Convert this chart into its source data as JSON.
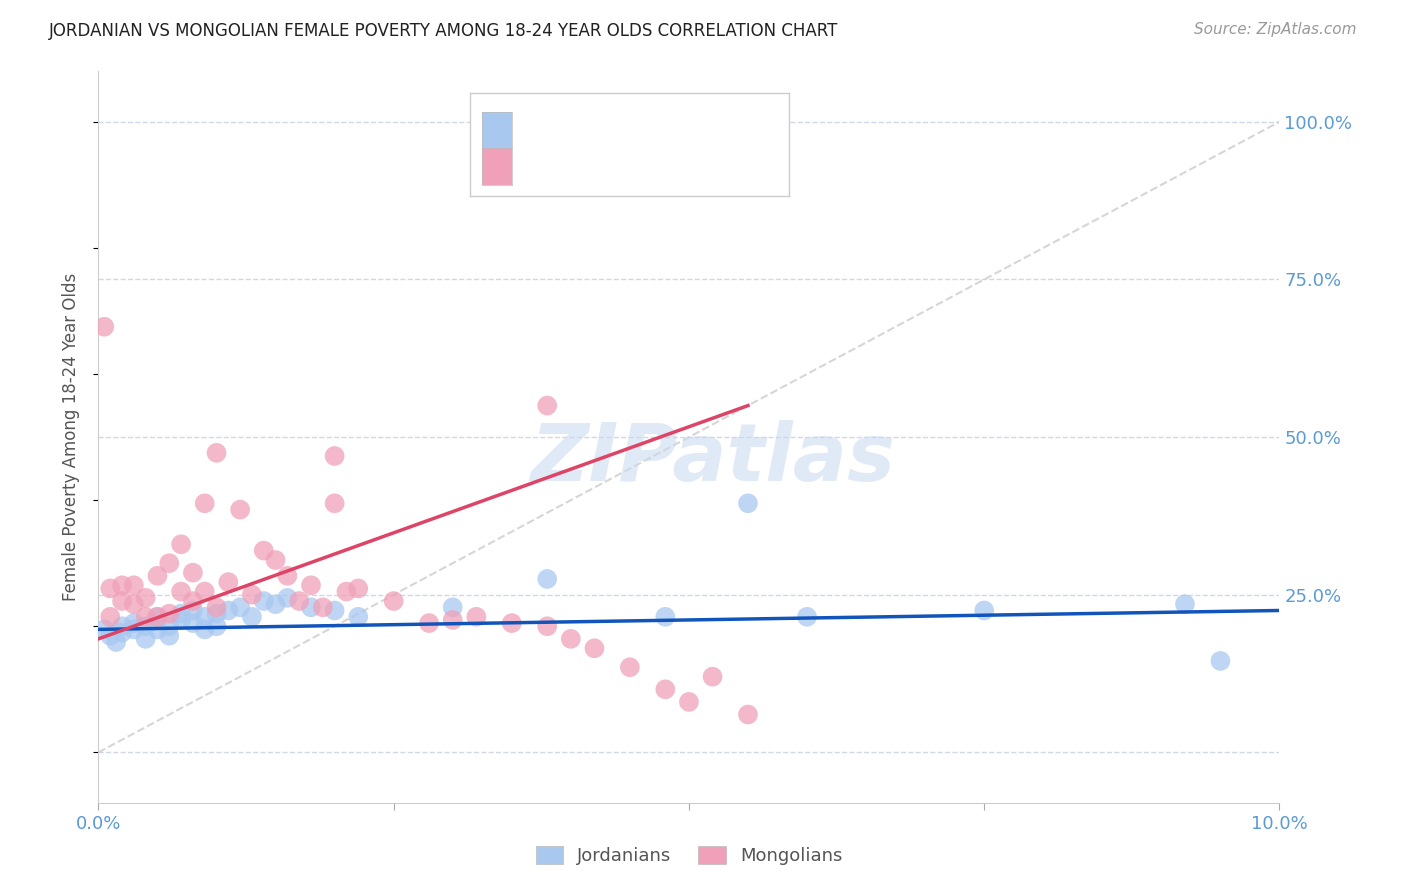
{
  "title": "JORDANIAN VS MONGOLIAN FEMALE POVERTY AMONG 18-24 YEAR OLDS CORRELATION CHART",
  "source": "Source: ZipAtlas.com",
  "ylabel": "Female Poverty Among 18-24 Year Olds",
  "xlim": [
    0.0,
    0.1
  ],
  "ylim": [
    -0.08,
    1.08
  ],
  "x_ticks": [
    0.0,
    0.025,
    0.05,
    0.075,
    0.1
  ],
  "x_tick_labels": [
    "0.0%",
    "",
    "",
    "",
    "10.0%"
  ],
  "y_ticks_right": [
    0.25,
    0.5,
    0.75,
    1.0
  ],
  "y_tick_labels_right": [
    "25.0%",
    "50.0%",
    "75.0%",
    "100.0%"
  ],
  "blue_color": "#a8c8f0",
  "pink_color": "#f0a0b8",
  "blue_line_color": "#1155bb",
  "pink_line_color": "#dd4466",
  "axis_color": "#5b9bd5",
  "watermark": "ZIPatlas",
  "blue_scatter_x": [
    0.0005,
    0.001,
    0.0015,
    0.002,
    0.002,
    0.003,
    0.003,
    0.004,
    0.004,
    0.005,
    0.005,
    0.006,
    0.006,
    0.007,
    0.007,
    0.008,
    0.008,
    0.009,
    0.009,
    0.01,
    0.01,
    0.011,
    0.012,
    0.013,
    0.014,
    0.015,
    0.016,
    0.018,
    0.02,
    0.022,
    0.03,
    0.038,
    0.048,
    0.055,
    0.06,
    0.075,
    0.092,
    0.095
  ],
  "blue_scatter_y": [
    0.195,
    0.185,
    0.175,
    0.19,
    0.2,
    0.195,
    0.205,
    0.18,
    0.2,
    0.195,
    0.215,
    0.2,
    0.185,
    0.21,
    0.22,
    0.205,
    0.225,
    0.195,
    0.215,
    0.2,
    0.22,
    0.225,
    0.23,
    0.215,
    0.24,
    0.235,
    0.245,
    0.23,
    0.225,
    0.215,
    0.23,
    0.275,
    0.215,
    0.395,
    0.215,
    0.225,
    0.235,
    0.145
  ],
  "pink_scatter_x": [
    0.0005,
    0.001,
    0.001,
    0.002,
    0.002,
    0.003,
    0.003,
    0.004,
    0.004,
    0.005,
    0.005,
    0.006,
    0.006,
    0.007,
    0.007,
    0.008,
    0.008,
    0.009,
    0.009,
    0.01,
    0.01,
    0.011,
    0.012,
    0.013,
    0.014,
    0.015,
    0.016,
    0.017,
    0.018,
    0.019,
    0.02,
    0.021,
    0.022,
    0.025,
    0.028,
    0.03,
    0.032,
    0.035,
    0.038,
    0.04,
    0.042,
    0.045,
    0.048,
    0.05,
    0.052,
    0.055,
    0.038,
    0.02
  ],
  "pink_scatter_y": [
    0.675,
    0.215,
    0.26,
    0.24,
    0.265,
    0.235,
    0.265,
    0.215,
    0.245,
    0.215,
    0.28,
    0.22,
    0.3,
    0.255,
    0.33,
    0.24,
    0.285,
    0.255,
    0.395,
    0.23,
    0.475,
    0.27,
    0.385,
    0.25,
    0.32,
    0.305,
    0.28,
    0.24,
    0.265,
    0.23,
    0.395,
    0.255,
    0.26,
    0.24,
    0.205,
    0.21,
    0.215,
    0.205,
    0.2,
    0.18,
    0.165,
    0.135,
    0.1,
    0.08,
    0.12,
    0.06,
    0.55,
    0.47
  ],
  "blue_line_x": [
    0.0,
    0.1
  ],
  "blue_line_y": [
    0.195,
    0.225
  ],
  "pink_line_x": [
    0.0,
    0.055
  ],
  "pink_line_y": [
    0.18,
    0.55
  ],
  "diag_line_x": [
    0.0,
    0.1
  ],
  "diag_line_y": [
    0.0,
    1.0
  ],
  "grid_color": "#d0d8e8",
  "background_color": "#ffffff"
}
